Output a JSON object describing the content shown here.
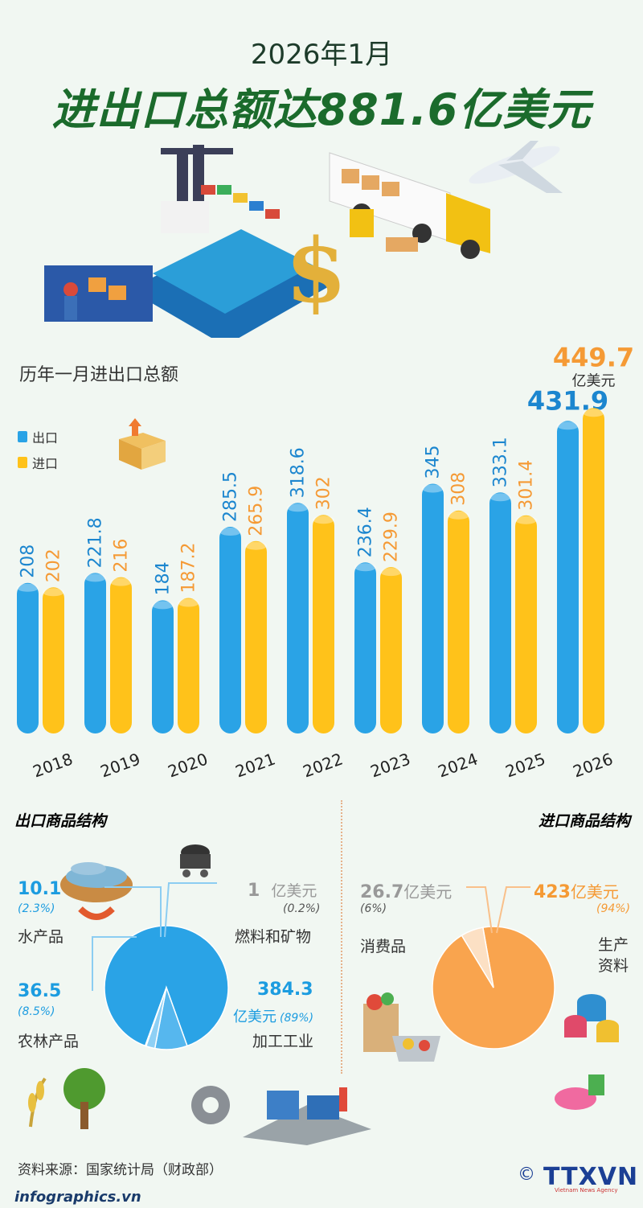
{
  "header": {
    "subtitle": "2026年1月",
    "title": "进出口总额达881.6亿美元"
  },
  "chart_section": {
    "label": "历年一月进出口总额",
    "legend": [
      {
        "name": "出口",
        "color": "#2aa3e6"
      },
      {
        "name": "进口",
        "color": "#ffc21a"
      }
    ],
    "unit_label": "亿美元"
  },
  "chart_data": [
    {
      "type": "bar",
      "title": "历年一月进出口总额",
      "categories": [
        "2018",
        "2019",
        "2020",
        "2021",
        "2022",
        "2023",
        "2024",
        "2025",
        "2026"
      ],
      "series": [
        {
          "name": "出口",
          "values": [
            208,
            221.8,
            184,
            285.5,
            318.6,
            236.4,
            345,
            333.1,
            431.9
          ],
          "labels": [
            "208",
            "221.8",
            "184",
            "285.5",
            "318.6",
            "236.4",
            "345",
            "333.1",
            "431.9"
          ],
          "color": "#2aa3e6"
        },
        {
          "name": "进口",
          "values": [
            202,
            216,
            187.2,
            265.9,
            302,
            229.9,
            308,
            301.4,
            449.7
          ],
          "labels": [
            "202",
            "216",
            "187.2",
            "265.9",
            "302",
            "229.9",
            "308",
            "301.4",
            "449.7"
          ],
          "color": "#ffc21a"
        }
      ],
      "annotation": "亿美元",
      "grid": false,
      "legend_position": "top-left"
    },
    {
      "type": "pie",
      "title": "出口商品结构",
      "slices": [
        {
          "label": "加工工业",
          "value": 384.3,
          "percent": "89%",
          "color": "#2aa3e6"
        },
        {
          "label": "农林产品",
          "value": 36.5,
          "percent": "8.5%",
          "color": "#56b7ee"
        },
        {
          "label": "水产品",
          "value": 10.1,
          "percent": "2.3%",
          "color": "#8ed0f5"
        },
        {
          "label": "燃料和矿物",
          "value": 1,
          "percent": "0.2%",
          "color": "#c7e8fb"
        }
      ]
    },
    {
      "type": "pie",
      "title": "进口商品结构",
      "slices": [
        {
          "label": "生产资料",
          "value": 423,
          "percent": "94%",
          "color": "#f9a44e"
        },
        {
          "label": "消费品",
          "value": 26.7,
          "percent": "6%",
          "color": "#fce0c4"
        }
      ]
    }
  ],
  "export_section": {
    "title": "出口商品结构",
    "color": "#1c9ce0",
    "items": {
      "aquatic": {
        "value": "10.1",
        "pct": "(2.3%)",
        "label": "水产品"
      },
      "fuel": {
        "value": "1",
        "unit": "亿美元",
        "pct": "(0.2%)",
        "label": "燃料和矿物"
      },
      "agri": {
        "value": "36.5",
        "pct": "(8.5%)",
        "label": "农林产品"
      },
      "industry": {
        "value": "384.3",
        "unit": "亿美元",
        "pct": "(89%)",
        "label": "加工工业"
      }
    }
  },
  "import_section": {
    "title": "进口商品结构",
    "color": "#f59a35",
    "items": {
      "consumer": {
        "value": "26.7",
        "unit": "亿美元",
        "pct": "(6%)",
        "label": "消费品"
      },
      "production": {
        "value": "423",
        "unit": "亿美元",
        "pct": "(94%)",
        "label1": "生产",
        "label2": "资料"
      }
    }
  },
  "footer": {
    "source": "资料来源：国家统计局（财政部）",
    "site": "infographics.vn",
    "copyright": "©",
    "agency": "TTXVN",
    "agency_sub": "Vietnam News Agency"
  },
  "icons": [
    "port-illustration",
    "truck-icon",
    "airplane-icon",
    "dollar-icon",
    "workers-illustration",
    "box-icon",
    "fish-basket-icon",
    "coal-cart-icon",
    "plants-icon",
    "factory-icon",
    "shopping-basket-icon",
    "thread-spools-icon"
  ]
}
